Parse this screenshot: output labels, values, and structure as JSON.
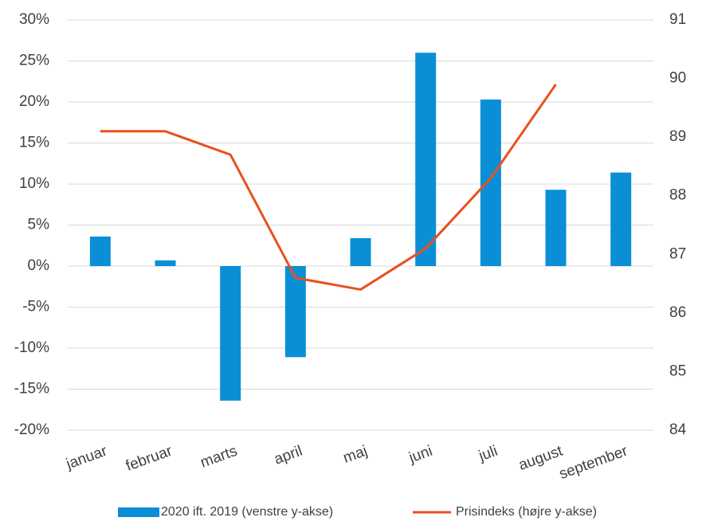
{
  "chart_data": {
    "type": "bar-line",
    "categories": [
      "januar",
      "februar",
      "marts",
      "april",
      "maj",
      "juni",
      "juli",
      "august",
      "september"
    ],
    "series": [
      {
        "name": "2020 ift. 2019 (venstre y-akse)",
        "color": "#0a8fd6",
        "type": "bar",
        "axis": "y",
        "values": [
          3.6,
          0.7,
          -16.4,
          -11.1,
          3.4,
          26.0,
          20.3,
          9.3,
          11.4
        ]
      },
      {
        "name": "Prisindeks (højre y-akse)",
        "color": "#e8501f",
        "type": "line",
        "axis": "y2",
        "values": [
          89.1,
          89.1,
          88.7,
          86.6,
          86.4,
          87.1,
          88.3,
          89.9,
          null
        ]
      }
    ],
    "ylim": [
      -20,
      30
    ],
    "yticks": [
      {
        "value": -20,
        "label": "-20%"
      },
      {
        "value": -15,
        "label": "-15%"
      },
      {
        "value": -10,
        "label": "-10%"
      },
      {
        "value": -5,
        "label": "-5%"
      },
      {
        "value": 0,
        "label": "0%"
      },
      {
        "value": 5,
        "label": "5%"
      },
      {
        "value": 10,
        "label": "10%"
      },
      {
        "value": 15,
        "label": "15%"
      },
      {
        "value": 20,
        "label": "20%"
      },
      {
        "value": 25,
        "label": "25%"
      },
      {
        "value": 30,
        "label": "30%"
      }
    ],
    "y2lim": [
      84,
      91
    ],
    "y2ticks": [
      84,
      85,
      86,
      87,
      88,
      89,
      90,
      91
    ],
    "grid": true,
    "legend": "bottom"
  }
}
